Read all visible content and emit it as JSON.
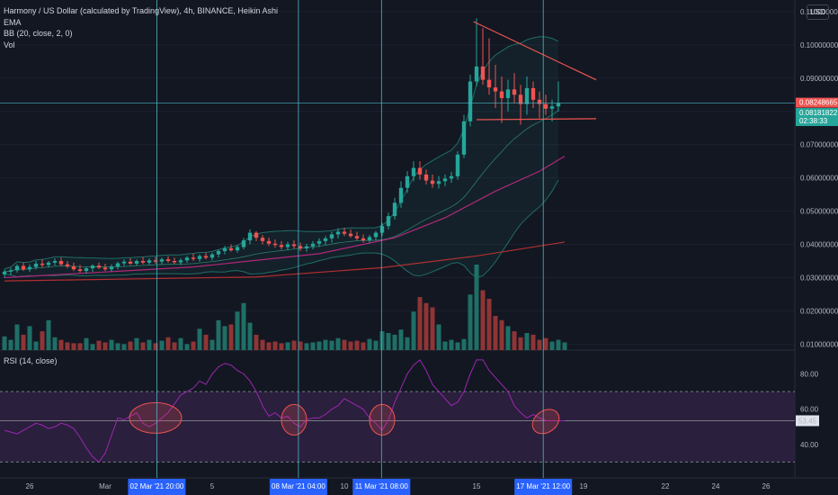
{
  "header": {
    "title": "Harmony / US Dollar (calculated by TradingView), 4h, BINANCE, Heikin Ashi",
    "ema_label": "EMA",
    "bb_label": "BB (20, close, 2, 0)",
    "vol_label": "Vol",
    "rsi_label": "RSI (14, close)",
    "currency_button": "USD"
  },
  "colors": {
    "background": "#131722",
    "up": "#26a69a",
    "down": "#ef5350",
    "vol_up": "#1f6f66",
    "vol_down": "#8f3535",
    "bb_band": "#1e6e66",
    "ema_pink": "#b0287a",
    "ema_red": "#b03030",
    "rsi_line": "#9c27b0",
    "rsi_fill": "#2a1f3d",
    "crosshair": "#4bb7c8",
    "annotation": "#ef5350",
    "highlight": "#2962ff"
  },
  "chart_data": {
    "type": "candlestick",
    "price_axis": {
      "ticks": [
        "0.11000000",
        "0.10000000",
        "0.09000000",
        "0.08000000",
        "0.07000000",
        "0.06000000",
        "0.05000000",
        "0.04000000",
        "0.03000000",
        "0.02000000",
        "0.01000000"
      ],
      "ylim": [
        0.0082,
        0.1135
      ]
    },
    "price_tags": [
      {
        "value": 0.08248665,
        "label": "0.08248665",
        "color": "#ef5350"
      },
      {
        "value": 0.08181822,
        "label": "0.08181822",
        "sub": "02:38:33",
        "color": "#26a69a"
      }
    ],
    "rsi_axis": {
      "ticks": [
        "80.00",
        "60.00",
        "40.00"
      ],
      "tick_values": [
        80,
        60,
        40
      ],
      "ylim": [
        21,
        92
      ],
      "upper_band": 70,
      "lower_band": 30,
      "middle": 53.45,
      "current_label": "53.45"
    },
    "x_axis": {
      "ticks": [
        {
          "label": "26",
          "i": 4
        },
        {
          "label": "Mar",
          "i": 16
        },
        {
          "label": "5",
          "i": 33
        },
        {
          "label": "10",
          "i": 54
        },
        {
          "label": "15",
          "i": 75
        },
        {
          "label": "19",
          "i": 92
        },
        {
          "label": "22",
          "i": 105
        },
        {
          "label": "24",
          "i": 113
        },
        {
          "label": "26",
          "i": 121
        }
      ],
      "highlights": [
        {
          "label": "02 Mar '21  20:00",
          "i": 24.2
        },
        {
          "label": "08 Mar '21  04:00",
          "i": 46.7
        },
        {
          "label": "11 Mar '21  08:00",
          "i": 59.9
        },
        {
          "label": "17 Mar '21  12:00",
          "i": 85.6
        }
      ]
    },
    "candles": [
      {
        "o": 0.031,
        "h": 0.0325,
        "l": 0.03,
        "c": 0.0318
      },
      {
        "o": 0.0318,
        "h": 0.033,
        "l": 0.0308,
        "c": 0.0322
      },
      {
        "o": 0.0322,
        "h": 0.034,
        "l": 0.0315,
        "c": 0.0335
      },
      {
        "o": 0.0335,
        "h": 0.0345,
        "l": 0.032,
        "c": 0.0325
      },
      {
        "o": 0.0325,
        "h": 0.034,
        "l": 0.0318,
        "c": 0.0332
      },
      {
        "o": 0.0332,
        "h": 0.035,
        "l": 0.0325,
        "c": 0.0342
      },
      {
        "o": 0.0342,
        "h": 0.0355,
        "l": 0.033,
        "c": 0.0338
      },
      {
        "o": 0.0338,
        "h": 0.035,
        "l": 0.033,
        "c": 0.0345
      },
      {
        "o": 0.0345,
        "h": 0.0358,
        "l": 0.0336,
        "c": 0.035
      },
      {
        "o": 0.035,
        "h": 0.036,
        "l": 0.0335,
        "c": 0.034
      },
      {
        "o": 0.034,
        "h": 0.035,
        "l": 0.0328,
        "c": 0.0334
      },
      {
        "o": 0.0334,
        "h": 0.0345,
        "l": 0.032,
        "c": 0.0325
      },
      {
        "o": 0.0325,
        "h": 0.0338,
        "l": 0.0315,
        "c": 0.032
      },
      {
        "o": 0.032,
        "h": 0.0332,
        "l": 0.0312,
        "c": 0.0328
      },
      {
        "o": 0.0328,
        "h": 0.034,
        "l": 0.0318,
        "c": 0.0336
      },
      {
        "o": 0.0336,
        "h": 0.0345,
        "l": 0.0326,
        "c": 0.033
      },
      {
        "o": 0.033,
        "h": 0.0342,
        "l": 0.032,
        "c": 0.0325
      },
      {
        "o": 0.0325,
        "h": 0.034,
        "l": 0.0318,
        "c": 0.0333
      },
      {
        "o": 0.0333,
        "h": 0.0348,
        "l": 0.0325,
        "c": 0.0343
      },
      {
        "o": 0.0343,
        "h": 0.0355,
        "l": 0.0335,
        "c": 0.0348
      },
      {
        "o": 0.0348,
        "h": 0.0358,
        "l": 0.0338,
        "c": 0.0342
      },
      {
        "o": 0.0342,
        "h": 0.0355,
        "l": 0.0335,
        "c": 0.035
      },
      {
        "o": 0.035,
        "h": 0.0362,
        "l": 0.034,
        "c": 0.0345
      },
      {
        "o": 0.0345,
        "h": 0.0358,
        "l": 0.0338,
        "c": 0.0352
      },
      {
        "o": 0.0352,
        "h": 0.0362,
        "l": 0.0342,
        "c": 0.0348
      },
      {
        "o": 0.0348,
        "h": 0.036,
        "l": 0.034,
        "c": 0.0355
      },
      {
        "o": 0.0355,
        "h": 0.0365,
        "l": 0.0345,
        "c": 0.035
      },
      {
        "o": 0.035,
        "h": 0.036,
        "l": 0.0342,
        "c": 0.0346
      },
      {
        "o": 0.0346,
        "h": 0.0358,
        "l": 0.0338,
        "c": 0.0352
      },
      {
        "o": 0.0352,
        "h": 0.0365,
        "l": 0.0345,
        "c": 0.036
      },
      {
        "o": 0.036,
        "h": 0.0372,
        "l": 0.035,
        "c": 0.0356
      },
      {
        "o": 0.0356,
        "h": 0.037,
        "l": 0.0348,
        "c": 0.0365
      },
      {
        "o": 0.0365,
        "h": 0.0375,
        "l": 0.0355,
        "c": 0.036
      },
      {
        "o": 0.036,
        "h": 0.0375,
        "l": 0.0352,
        "c": 0.037
      },
      {
        "o": 0.037,
        "h": 0.0385,
        "l": 0.036,
        "c": 0.038
      },
      {
        "o": 0.038,
        "h": 0.0395,
        "l": 0.037,
        "c": 0.0388
      },
      {
        "o": 0.0388,
        "h": 0.04,
        "l": 0.0378,
        "c": 0.0382
      },
      {
        "o": 0.0382,
        "h": 0.0398,
        "l": 0.0375,
        "c": 0.0392
      },
      {
        "o": 0.0392,
        "h": 0.042,
        "l": 0.0385,
        "c": 0.0412
      },
      {
        "o": 0.0412,
        "h": 0.0445,
        "l": 0.04,
        "c": 0.0435
      },
      {
        "o": 0.0435,
        "h": 0.044,
        "l": 0.041,
        "c": 0.042
      },
      {
        "o": 0.042,
        "h": 0.0428,
        "l": 0.04,
        "c": 0.041
      },
      {
        "o": 0.041,
        "h": 0.042,
        "l": 0.0395,
        "c": 0.0402
      },
      {
        "o": 0.0402,
        "h": 0.0415,
        "l": 0.039,
        "c": 0.0398
      },
      {
        "o": 0.0398,
        "h": 0.041,
        "l": 0.0385,
        "c": 0.0392
      },
      {
        "o": 0.0392,
        "h": 0.0408,
        "l": 0.0382,
        "c": 0.04
      },
      {
        "o": 0.04,
        "h": 0.0412,
        "l": 0.0388,
        "c": 0.0395
      },
      {
        "o": 0.0395,
        "h": 0.0405,
        "l": 0.038,
        "c": 0.0388
      },
      {
        "o": 0.0388,
        "h": 0.0402,
        "l": 0.0378,
        "c": 0.0394
      },
      {
        "o": 0.0394,
        "h": 0.041,
        "l": 0.0385,
        "c": 0.0402
      },
      {
        "o": 0.0402,
        "h": 0.0418,
        "l": 0.0392,
        "c": 0.041
      },
      {
        "o": 0.041,
        "h": 0.0425,
        "l": 0.0398,
        "c": 0.0418
      },
      {
        "o": 0.0418,
        "h": 0.0438,
        "l": 0.0405,
        "c": 0.043
      },
      {
        "o": 0.043,
        "h": 0.0448,
        "l": 0.0418,
        "c": 0.0438
      },
      {
        "o": 0.0438,
        "h": 0.045,
        "l": 0.0425,
        "c": 0.0432
      },
      {
        "o": 0.0432,
        "h": 0.0445,
        "l": 0.042,
        "c": 0.0425
      },
      {
        "o": 0.0425,
        "h": 0.0438,
        "l": 0.0412,
        "c": 0.0418
      },
      {
        "o": 0.0418,
        "h": 0.043,
        "l": 0.0405,
        "c": 0.0412
      },
      {
        "o": 0.0412,
        "h": 0.0428,
        "l": 0.0405,
        "c": 0.0422
      },
      {
        "o": 0.0422,
        "h": 0.044,
        "l": 0.0412,
        "c": 0.0435
      },
      {
        "o": 0.0435,
        "h": 0.0465,
        "l": 0.0425,
        "c": 0.0455
      },
      {
        "o": 0.0455,
        "h": 0.0495,
        "l": 0.0445,
        "c": 0.0485
      },
      {
        "o": 0.0485,
        "h": 0.054,
        "l": 0.0475,
        "c": 0.0525
      },
      {
        "o": 0.0525,
        "h": 0.059,
        "l": 0.051,
        "c": 0.057
      },
      {
        "o": 0.057,
        "h": 0.062,
        "l": 0.0555,
        "c": 0.0605
      },
      {
        "o": 0.0605,
        "h": 0.065,
        "l": 0.059,
        "c": 0.063
      },
      {
        "o": 0.063,
        "h": 0.065,
        "l": 0.0595,
        "c": 0.061
      },
      {
        "o": 0.061,
        "h": 0.0625,
        "l": 0.058,
        "c": 0.0592
      },
      {
        "o": 0.0592,
        "h": 0.061,
        "l": 0.057,
        "c": 0.0582
      },
      {
        "o": 0.0582,
        "h": 0.0605,
        "l": 0.0568,
        "c": 0.059
      },
      {
        "o": 0.059,
        "h": 0.061,
        "l": 0.0575,
        "c": 0.0598
      },
      {
        "o": 0.0598,
        "h": 0.0618,
        "l": 0.0585,
        "c": 0.0605
      },
      {
        "o": 0.0605,
        "h": 0.068,
        "l": 0.0595,
        "c": 0.067
      },
      {
        "o": 0.067,
        "h": 0.079,
        "l": 0.066,
        "c": 0.077
      },
      {
        "o": 0.077,
        "h": 0.091,
        "l": 0.0755,
        "c": 0.089
      },
      {
        "o": 0.089,
        "h": 0.108,
        "l": 0.0875,
        "c": 0.0935
      },
      {
        "o": 0.0935,
        "h": 0.105,
        "l": 0.088,
        "c": 0.0895
      },
      {
        "o": 0.0895,
        "h": 0.102,
        "l": 0.085,
        "c": 0.0872
      },
      {
        "o": 0.0872,
        "h": 0.094,
        "l": 0.081,
        "c": 0.086
      },
      {
        "o": 0.086,
        "h": 0.0905,
        "l": 0.0765,
        "c": 0.084
      },
      {
        "o": 0.084,
        "h": 0.0895,
        "l": 0.08,
        "c": 0.0866
      },
      {
        "o": 0.0866,
        "h": 0.0915,
        "l": 0.0825,
        "c": 0.085
      },
      {
        "o": 0.085,
        "h": 0.088,
        "l": 0.076,
        "c": 0.0822
      },
      {
        "o": 0.0822,
        "h": 0.0905,
        "l": 0.079,
        "c": 0.087
      },
      {
        "o": 0.087,
        "h": 0.089,
        "l": 0.081,
        "c": 0.0835
      },
      {
        "o": 0.0835,
        "h": 0.086,
        "l": 0.078,
        "c": 0.0822
      },
      {
        "o": 0.0822,
        "h": 0.085,
        "l": 0.079,
        "c": 0.0808
      },
      {
        "o": 0.0808,
        "h": 0.0835,
        "l": 0.077,
        "c": 0.0815
      },
      {
        "o": 0.0815,
        "h": 0.089,
        "l": 0.08,
        "c": 0.0825
      }
    ],
    "volume": [
      16,
      12,
      30,
      18,
      28,
      10,
      22,
      35,
      15,
      12,
      9,
      8,
      8,
      14,
      7,
      11,
      9,
      12,
      8,
      7,
      10,
      14,
      9,
      12,
      8,
      11,
      15,
      9,
      14,
      7,
      10,
      25,
      18,
      12,
      35,
      28,
      30,
      45,
      55,
      32,
      18,
      12,
      9,
      10,
      8,
      9,
      11,
      10,
      8,
      9,
      10,
      12,
      11,
      14,
      12,
      10,
      11,
      9,
      13,
      11,
      22,
      20,
      18,
      24,
      15,
      45,
      62,
      55,
      50,
      30,
      10,
      12,
      9,
      13,
      65,
      100,
      70,
      60,
      40,
      35,
      28,
      22,
      15,
      20,
      18,
      12,
      14,
      10,
      12,
      9
    ],
    "rsi": [
      48,
      47,
      46,
      48,
      50,
      52,
      51,
      49,
      50,
      52,
      51,
      49,
      44,
      38,
      33,
      30,
      35,
      45,
      55,
      54,
      56,
      58,
      52,
      50,
      52,
      55,
      58,
      63,
      68,
      70,
      72,
      76,
      74,
      80,
      84,
      86,
      85,
      82,
      80,
      76,
      70,
      62,
      56,
      58,
      55,
      56,
      52,
      50,
      54,
      55,
      55,
      57,
      60,
      62,
      66,
      64,
      62,
      60,
      55,
      52,
      48,
      54,
      64,
      72,
      80,
      85,
      88,
      82,
      74,
      70,
      66,
      62,
      64,
      70,
      80,
      88,
      88,
      82,
      78,
      74,
      70,
      62,
      58,
      55,
      57,
      55,
      53.45,
      53.45,
      53.45,
      53.45
    ],
    "overlays": {
      "ema_red": [
        {
          "i": 0,
          "v": 0.029
        },
        {
          "i": 40,
          "v": 0.0302
        },
        {
          "i": 60,
          "v": 0.033
        },
        {
          "i": 75,
          "v": 0.0365
        },
        {
          "i": 89,
          "v": 0.0407
        }
      ],
      "ema_pink": [
        {
          "i": 0,
          "v": 0.03
        },
        {
          "i": 30,
          "v": 0.0332
        },
        {
          "i": 50,
          "v": 0.0372
        },
        {
          "i": 62,
          "v": 0.042
        },
        {
          "i": 70,
          "v": 0.048
        },
        {
          "i": 78,
          "v": 0.056
        },
        {
          "i": 85,
          "v": 0.062
        },
        {
          "i": 89,
          "v": 0.0665
        }
      ]
    },
    "annotations": [
      {
        "kind": "trendline",
        "from": {
          "i": 74.5,
          "v": 0.107
        },
        "to": {
          "i": 94,
          "v": 0.0895
        }
      },
      {
        "kind": "trendline",
        "from": {
          "i": 75,
          "v": 0.0775
        },
        "to": {
          "i": 94,
          "v": 0.0778
        }
      },
      {
        "kind": "ellipse",
        "at": {
          "i": 24,
          "rsi": 55
        },
        "label": ""
      },
      {
        "kind": "ellipse",
        "at": {
          "i": 46,
          "rsi": 54
        },
        "label": ""
      },
      {
        "kind": "ellipse",
        "at": {
          "i": 60,
          "rsi": 54
        },
        "label": ""
      },
      {
        "kind": "ellipse",
        "at": {
          "i": 86,
          "rsi": 53
        },
        "label": ""
      }
    ]
  }
}
